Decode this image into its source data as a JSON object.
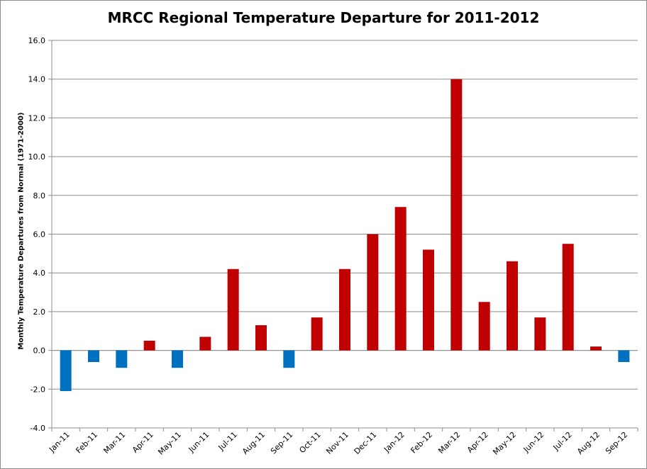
{
  "chart_data": {
    "type": "bar",
    "title": "MRCC Regional Temperature Departure for 2011-2012",
    "xlabel": "",
    "ylabel": "Monthly Temperature Departures from Normal (1971-2000)",
    "ylim": [
      -4.0,
      16.0
    ],
    "yticks": [
      "-4.0",
      "-2.0",
      "0.0",
      "2.0",
      "4.0",
      "6.0",
      "8.0",
      "10.0",
      "12.0",
      "14.0",
      "16.0"
    ],
    "ytick_values": [
      -4,
      -2,
      0,
      2,
      4,
      6,
      8,
      10,
      12,
      14,
      16
    ],
    "grid": true,
    "legend": "none",
    "categories": [
      "Jan-11",
      "Feb-11",
      "Mar-11",
      "Apr-11",
      "May-11",
      "Jun-11",
      "Jul-11",
      "Aug-11",
      "Sep-11",
      "Oct-11",
      "Nov-11",
      "Dec-11",
      "Jan-12",
      "Feb-12",
      "Mar-12",
      "Apr-12",
      "May-12",
      "Jun-12",
      "Jul-12",
      "Aug-12",
      "Sep-12"
    ],
    "values": [
      -2.1,
      -0.6,
      -0.9,
      0.5,
      -0.9,
      0.7,
      4.2,
      1.3,
      -0.9,
      1.7,
      4.2,
      6.0,
      7.4,
      5.2,
      14.0,
      2.5,
      4.6,
      1.7,
      5.5,
      0.2,
      -0.6
    ],
    "colors": {
      "positive": "#c00000",
      "negative": "#0070c0"
    }
  }
}
